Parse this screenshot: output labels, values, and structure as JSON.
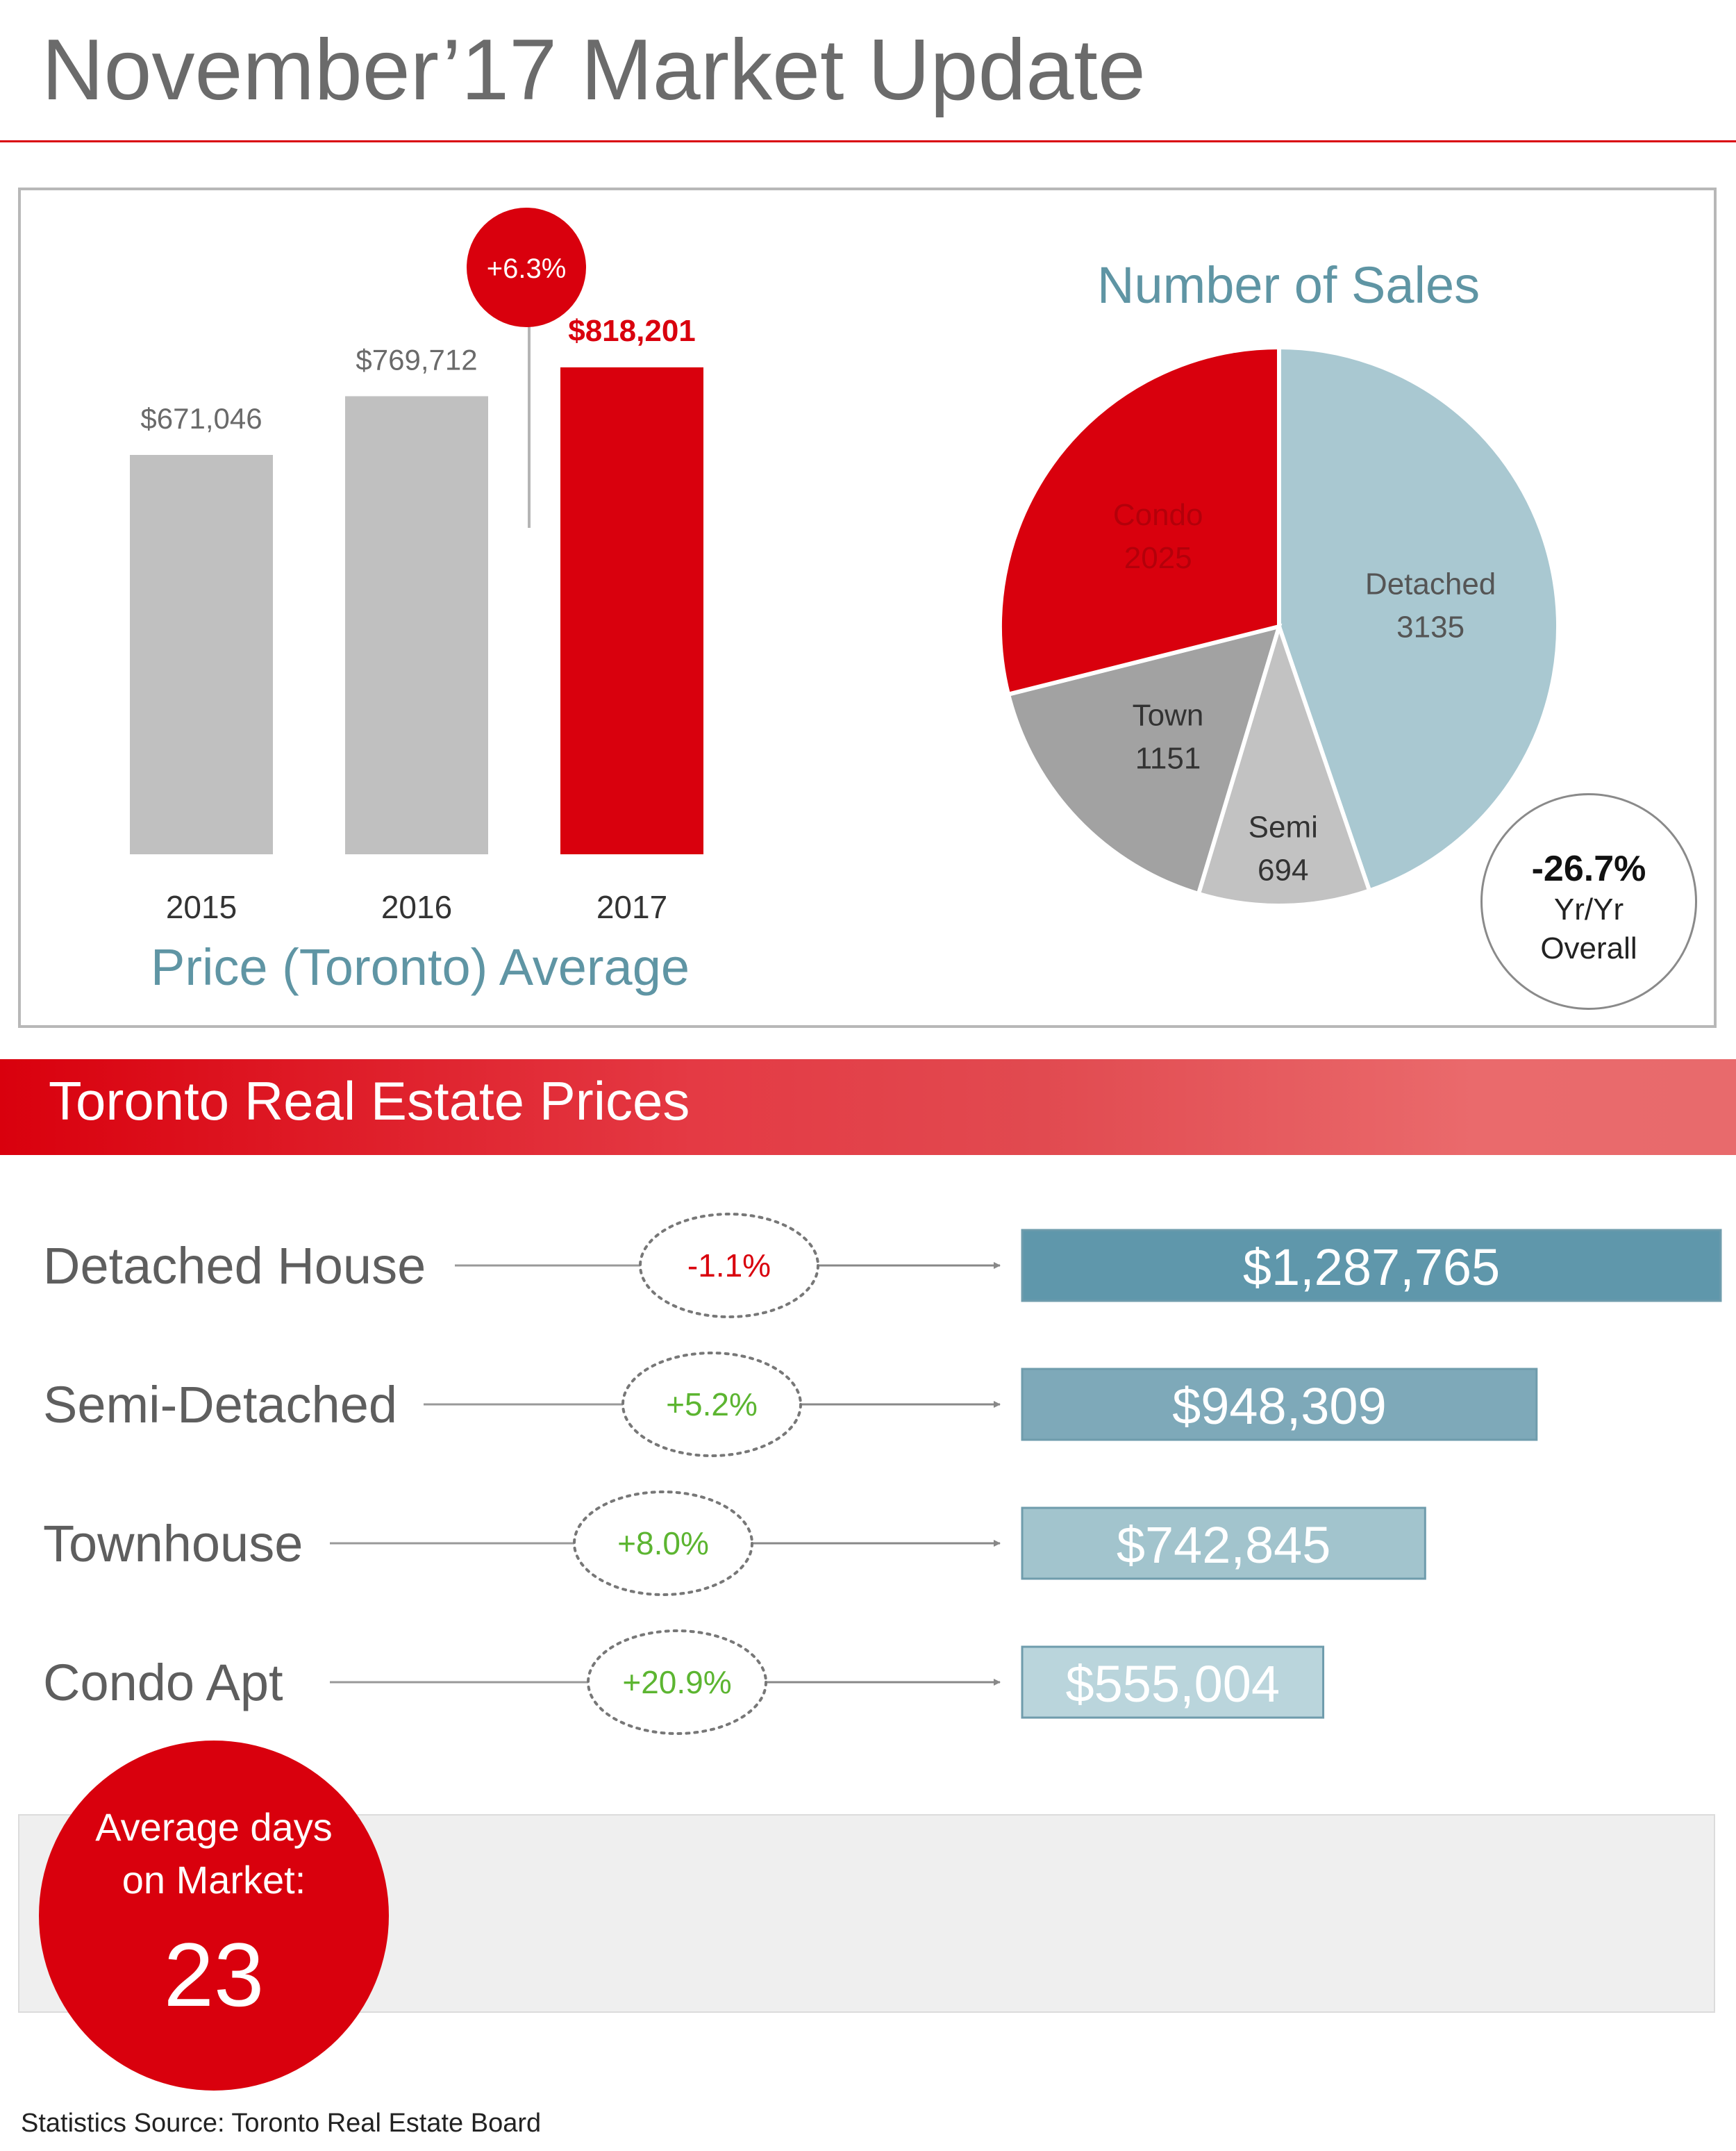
{
  "header": {
    "title": "November’17 Market Update"
  },
  "colors": {
    "accent_red": "#d9000d",
    "bar_gray": "#c0c0c0",
    "teal_title": "#5f95a4",
    "pie_detached": "#a9c8d1",
    "pie_semi": "#c2c2c2",
    "pie_town": "#a2a2a2",
    "pie_condo": "#d9000d",
    "price_bars": [
      "#5f97ab",
      "#7ea9b9",
      "#a2c4cd",
      "#bad5dc"
    ],
    "negative": "#d9000d",
    "positive": "#5cb531"
  },
  "chart_data": [
    {
      "type": "bar",
      "title": "Price (Toronto) Average",
      "categories": [
        "2015",
        "2016",
        "2017"
      ],
      "values": [
        671046,
        769712,
        818201
      ],
      "value_labels": [
        "$671,046",
        "$769,712",
        "$818,201"
      ],
      "highlight_index": 2,
      "change_badge": "+6.3%"
    },
    {
      "type": "pie",
      "title": "Number of Sales",
      "slices": [
        {
          "label": "Detached",
          "value": 3135
        },
        {
          "label": "Semi",
          "value": 694
        },
        {
          "label": "Town",
          "value": 1151
        },
        {
          "label": "Condo",
          "value": 2025
        }
      ],
      "yoy": {
        "value": "-26.7%",
        "line1": "Yr/Yr",
        "line2": "Overall"
      }
    },
    {
      "type": "bar",
      "title": "Toronto Real Estate Prices",
      "orientation": "horizontal",
      "categories": [
        "Detached House",
        "Semi-Detached",
        "Townhouse",
        "Condo Apt"
      ],
      "values": [
        1287765,
        948309,
        742845,
        555004
      ],
      "value_labels": [
        "$1,287,765",
        "$948,309",
        "$742,845",
        "$555,004"
      ],
      "changes": [
        "-1.1%",
        "+5.2%",
        "+8.0%",
        "+20.9%"
      ]
    }
  ],
  "days_on_market": {
    "line1": "Average days",
    "line2": "on Market:",
    "value": "23"
  },
  "footer": {
    "source": "Statistics Source: Toronto Real Estate Board"
  }
}
